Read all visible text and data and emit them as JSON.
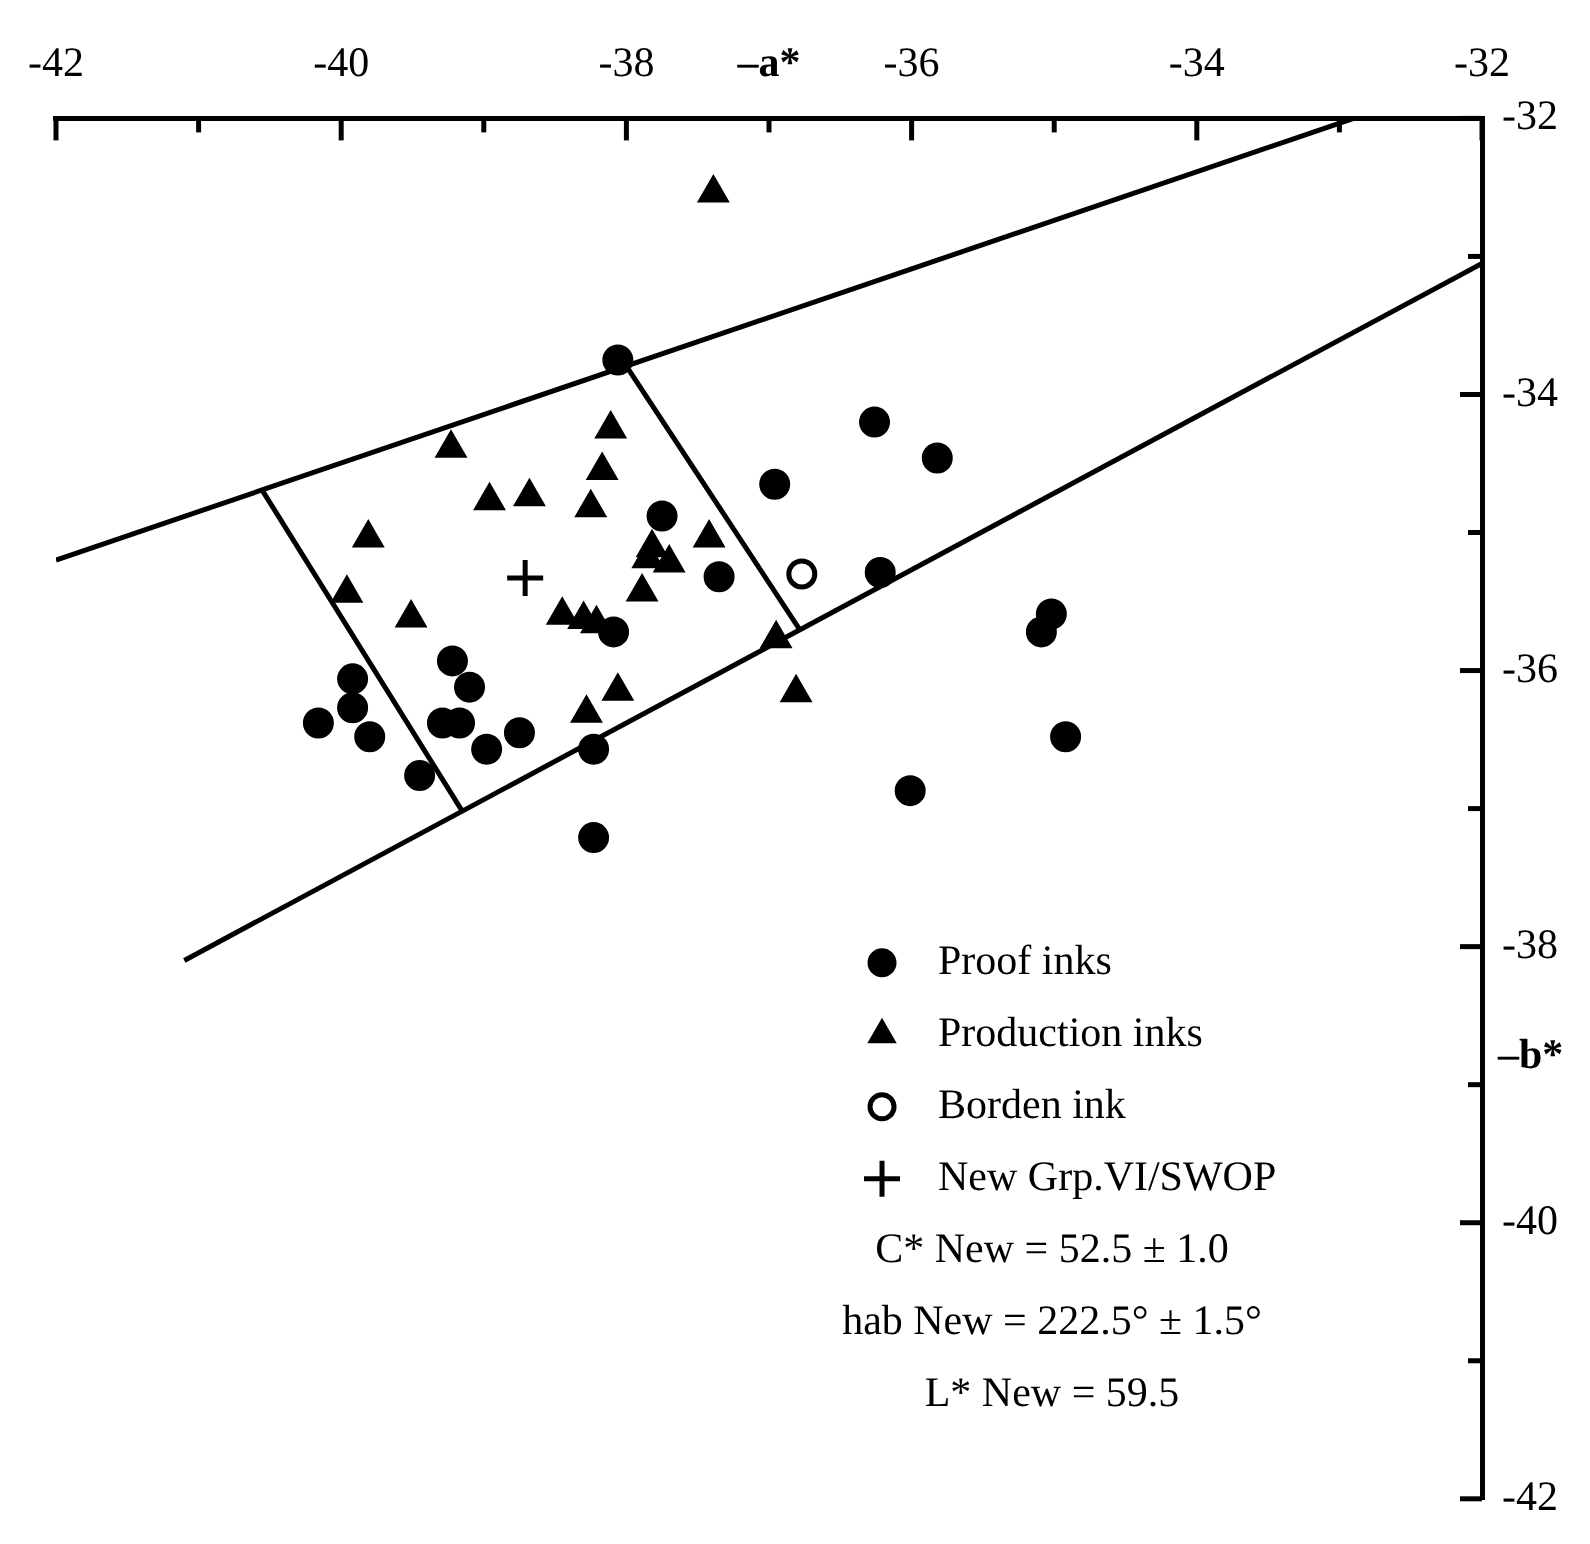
{
  "chart_data": {
    "type": "scatter",
    "xlabel": "–a*",
    "ylabel": "–b*",
    "xlim": [
      -42,
      -32
    ],
    "xticks": [
      -42,
      {
        "value": -41,
        "label": null
      },
      -40,
      {
        "value": -39,
        "label": null
      },
      -38,
      {
        "value": -37,
        "label": null
      },
      -36,
      {
        "value": -35,
        "label": null
      },
      -34,
      {
        "value": -33,
        "label": null
      },
      -32
    ],
    "ylim": [
      -42,
      -32
    ],
    "yticks": [
      -42,
      {
        "value": -41,
        "label": null
      },
      -40,
      {
        "value": -39,
        "label": null
      },
      -38,
      {
        "value": -37,
        "label": null
      },
      -36,
      {
        "value": -35,
        "label": null
      },
      -34,
      {
        "value": -33,
        "label": null
      },
      -32
    ],
    "grid": false,
    "legend": "bottom right",
    "series": [
      {
        "name": "Proof inks",
        "type": "scatter",
        "marker": "circle",
        "color": "#000000",
        "x": [
          -38.06,
          -36.96,
          -37.75,
          -37.35,
          -38.09,
          -39.22,
          -39.92,
          -39.1,
          -39.92,
          -40.16,
          -39.29,
          -39.17,
          -39.8,
          -38.75,
          -38.98,
          -38.23,
          -39.45,
          -38.23,
          -36.26,
          -35.82,
          -36.22,
          -35.02,
          -35.09,
          -34.92,
          -36.01
        ],
        "values": [
          -33.75,
          -34.65,
          -34.88,
          -35.32,
          -35.72,
          -35.93,
          -36.06,
          -36.12,
          -36.27,
          -36.38,
          -36.38,
          -36.38,
          -36.48,
          -36.45,
          -36.57,
          -36.57,
          -36.76,
          -37.21,
          -34.2,
          -34.46,
          -35.29,
          -35.59,
          -35.72,
          -36.48,
          -36.87
        ]
      },
      {
        "name": "Production inks",
        "type": "scatter",
        "marker": "triangle",
        "color": "#000000",
        "x": [
          -37.39,
          -38.11,
          -39.23,
          -38.17,
          -38.96,
          -38.68,
          -38.25,
          -39.81,
          -37.42,
          -37.82,
          -37.85,
          -37.7,
          -37.89,
          -39.96,
          -39.51,
          -38.45,
          -38.3,
          -38.21,
          -36.95,
          -38.06,
          -38.28,
          -36.81
        ],
        "values": [
          -32.54,
          -34.25,
          -34.39,
          -34.55,
          -34.77,
          -34.74,
          -34.82,
          -35.04,
          -35.04,
          -35.11,
          -35.19,
          -35.22,
          -35.43,
          -35.44,
          -35.62,
          -35.6,
          -35.63,
          -35.66,
          -35.77,
          -36.15,
          -36.31,
          -36.16
        ]
      },
      {
        "name": "Borden ink",
        "type": "scatter",
        "marker": "circle",
        "color": "#ffffff",
        "x": [
          -36.77
        ],
        "values": [
          -35.3
        ]
      },
      {
        "name": "New Grp.VI/SWOP",
        "type": "scatter",
        "marker": "cross",
        "color": "#000000",
        "x": [
          -38.71
        ],
        "values": [
          -35.33
        ]
      },
      {
        "type": "line",
        "marker": "none",
        "line_style": "solid",
        "color": "#000000",
        "x": [
          -42,
          -32.9
        ],
        "values": [
          -35.2,
          -32
        ]
      },
      {
        "type": "line",
        "marker": "none",
        "line_style": "solid",
        "color": "#000000",
        "x": [
          -41.1,
          -32
        ],
        "values": [
          -38.1,
          -33.05
        ]
      },
      {
        "type": "line",
        "marker": "none",
        "line_style": "solid",
        "color": "#000000",
        "x": [
          -40.55,
          -39.15
        ],
        "values": [
          -34.7,
          -37.02
        ]
      },
      {
        "type": "line",
        "marker": "none",
        "line_style": "solid",
        "color": "#000000",
        "x": [
          -37.99,
          -36.78
        ],
        "values": [
          -33.81,
          -35.71
        ]
      }
    ],
    "annotations": [
      "C* New = 52.5 ± 1.0",
      "hab New = 222.5° ± 1.5°",
      "L* New = 59.5"
    ]
  }
}
